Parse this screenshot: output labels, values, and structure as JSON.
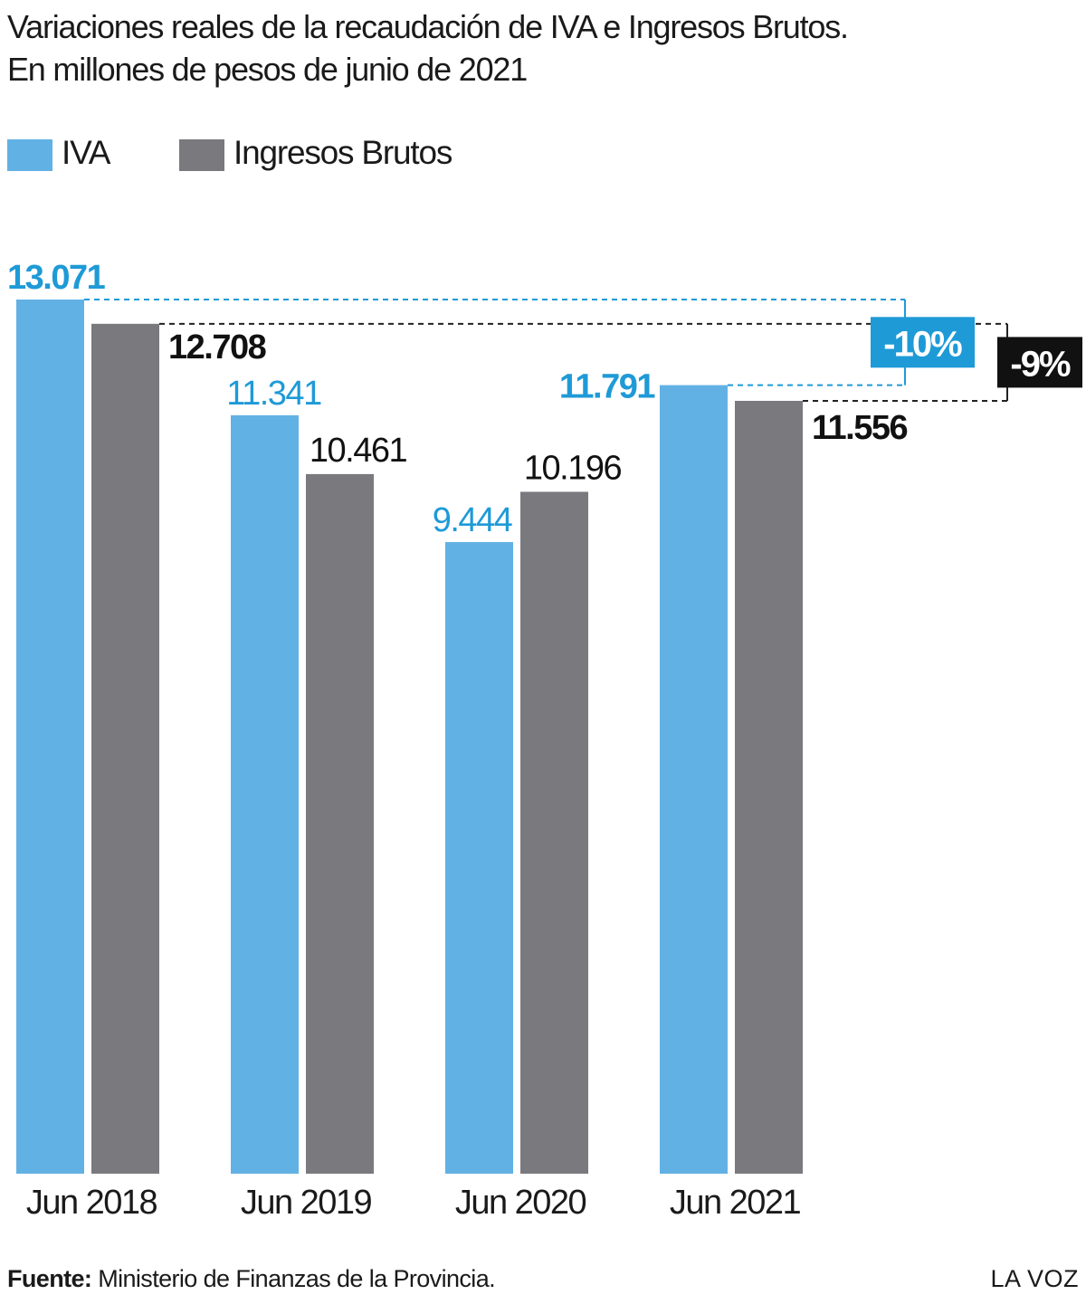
{
  "title_line1": "Variaciones reales de la recaudación de IVA e Ingresos Brutos.",
  "title_line2": "En millones de pesos de junio de 2021",
  "colors": {
    "iva": "#62b1e4",
    "ib": "#7a797e",
    "iva_label": "#1e9ad7",
    "ib_label": "#111111",
    "badge_iva": "#1e9ad7",
    "badge_ib": "#111111"
  },
  "footer": {
    "label": "Fuente:",
    "text": " Ministerio de Finanzas de la Provincia."
  },
  "brand": "LA VOZ",
  "chart_data": {
    "type": "bar",
    "categories": [
      "Jun 2018",
      "Jun 2019",
      "Jun 2020",
      "Jun 2021"
    ],
    "series": [
      {
        "name": "IVA",
        "values": [
          13071,
          11341,
          9444,
          11791
        ],
        "labels": [
          "13.071",
          "11.341",
          "9.444",
          "11.791"
        ]
      },
      {
        "name": "Ingresos Brutos",
        "values": [
          12708,
          10461,
          10196,
          11556
        ],
        "labels": [
          "12.708",
          "10.461",
          "10.196",
          "11.556"
        ]
      }
    ],
    "ylim": [
      0,
      13071
    ],
    "grid": false,
    "legend": "top-left",
    "annotations": [
      {
        "series": "IVA",
        "from": "Jun 2018",
        "to": "Jun 2021",
        "text": "-10%"
      },
      {
        "series": "Ingresos Brutos",
        "from": "Jun 2018",
        "to": "Jun 2021",
        "text": "-9%"
      }
    ]
  }
}
